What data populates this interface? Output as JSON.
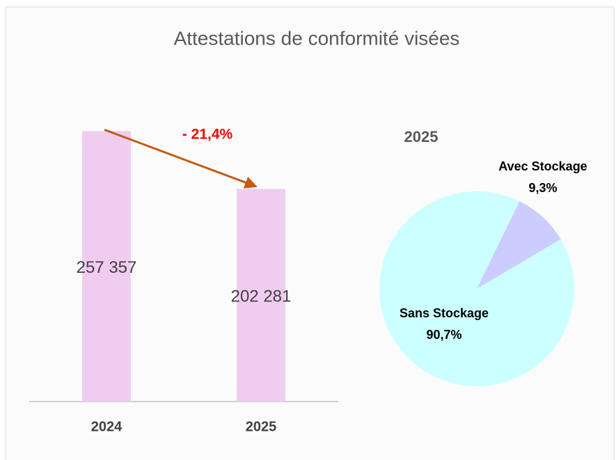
{
  "chart_data": [
    {
      "type": "bar",
      "title": "Attestations de conformité visées",
      "categories": [
        "2024",
        "2025"
      ],
      "values": [
        257357,
        202281
      ],
      "value_labels": [
        "257 357",
        "202 281"
      ],
      "color": "#f0cdf0",
      "ylim": [
        0,
        300000
      ],
      "annotation": "- 21,4%",
      "annotation_color": "#ff0000",
      "arrow_color": "#c55a11"
    },
    {
      "type": "pie",
      "title": "2025",
      "categories": [
        "Avec Stockage",
        "Sans Stockage"
      ],
      "values": [
        9.3,
        90.7
      ],
      "value_labels": [
        "9,3%",
        "90,7%"
      ],
      "colors": [
        "#ccccff",
        "#ccffff"
      ]
    }
  ]
}
